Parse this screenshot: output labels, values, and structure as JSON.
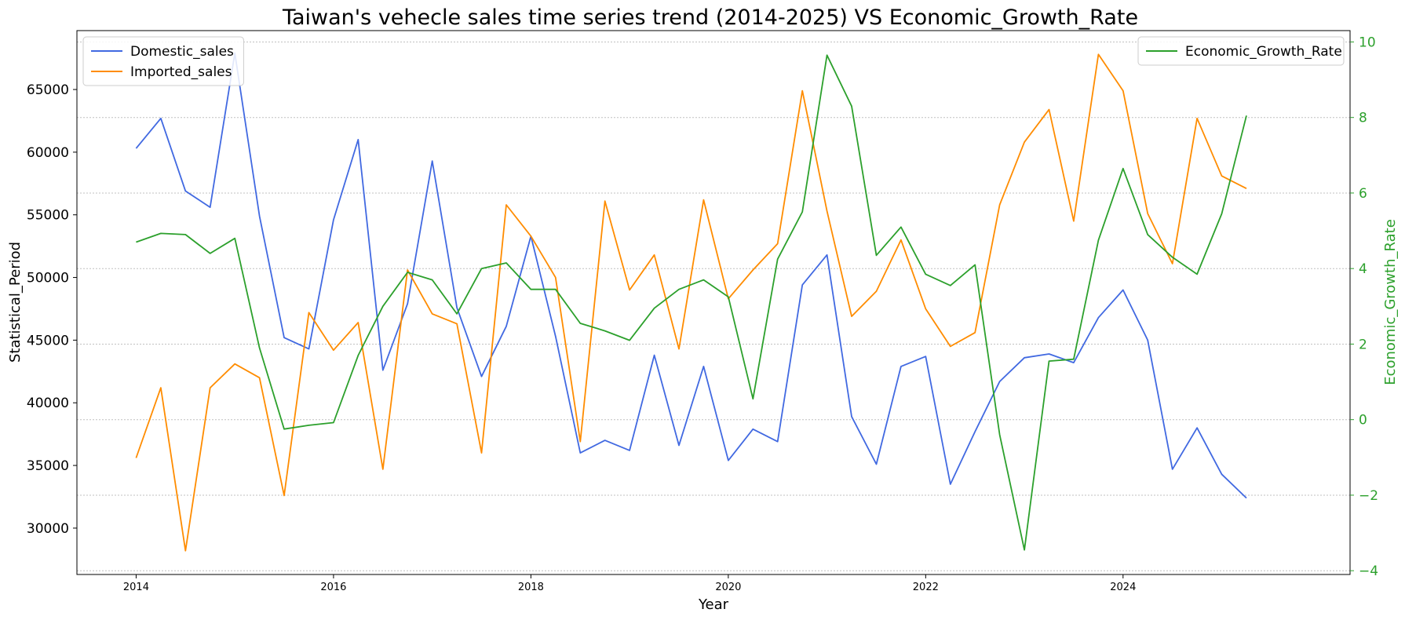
{
  "chart_data": {
    "type": "line",
    "title": "Taiwan's vehecle sales time series trend (2014-2025) VS Economic_Growth_Rate",
    "xlabel": "Year",
    "ylabel_left": "Statistical_Period",
    "ylabel_right": "Economic_Growth_Rate",
    "x_ticks": [
      2014,
      2016,
      2018,
      2020,
      2022,
      2024
    ],
    "x_ticks_labels": [
      "2014",
      "2016",
      "2018",
      "2020",
      "2022",
      "2024"
    ],
    "xlim": [
      2013.4,
      2026.3
    ],
    "ylim_left": [
      26300,
      69700
    ],
    "yticks_left": [
      30000,
      35000,
      40000,
      45000,
      50000,
      55000,
      60000,
      65000
    ],
    "yticks_left_labels": [
      "30000",
      "35000",
      "40000",
      "45000",
      "50000",
      "55000",
      "60000",
      "65000"
    ],
    "ylim_right": [
      -4.1,
      10.3
    ],
    "yticks_right": [
      -4,
      -2,
      0,
      2,
      4,
      6,
      8,
      10
    ],
    "yticks_right_labels": [
      "−4",
      "−2",
      "0",
      "2",
      "4",
      "6",
      "8",
      "10"
    ],
    "grid": "horizontal",
    "x": [
      2014.0,
      2014.25,
      2014.5,
      2014.75,
      2015.0,
      2015.25,
      2015.5,
      2015.75,
      2016.0,
      2016.25,
      2016.5,
      2016.75,
      2017.0,
      2017.25,
      2017.5,
      2017.75,
      2018.0,
      2018.25,
      2018.5,
      2018.75,
      2019.0,
      2019.25,
      2019.5,
      2019.75,
      2020.0,
      2020.25,
      2020.5,
      2020.75,
      2021.0,
      2021.25,
      2021.5,
      2021.75,
      2022.0,
      2022.25,
      2022.5,
      2022.75,
      2023.0,
      2023.25,
      2023.5,
      2023.75,
      2024.0,
      2024.25,
      2024.5,
      2024.75,
      2025.0,
      2025.25
    ],
    "series": [
      {
        "name": "Domestic_sales",
        "axis": "left",
        "color": "#4169e1",
        "values": [
          60300,
          62700,
          56900,
          55600,
          67900,
          54900,
          45200,
          44300,
          54600,
          61000,
          42600,
          47900,
          59300,
          47600,
          42100,
          46100,
          53300,
          45300,
          36000,
          37000,
          36200,
          43800,
          36600,
          42900,
          35400,
          37900,
          36900,
          49400,
          51800,
          38900,
          35100,
          42900,
          43700,
          33500,
          37700,
          41700,
          43600,
          43900,
          43200,
          46800,
          49000,
          45000,
          34700,
          38000,
          34300,
          32400
        ]
      },
      {
        "name": "Imported_sales",
        "axis": "left",
        "color": "#ff8c00",
        "values": [
          35600,
          41200,
          28200,
          41200,
          43100,
          42000,
          32600,
          47200,
          44200,
          46400,
          34700,
          50600,
          47100,
          46300,
          36000,
          55800,
          53300,
          50000,
          36900,
          56100,
          49000,
          51800,
          44300,
          56200,
          48300,
          50600,
          52700,
          64900,
          55300,
          46900,
          48900,
          53000,
          47500,
          44500,
          45600,
          55800,
          60800,
          63400,
          54500,
          67800,
          64900,
          55100,
          51100,
          62700,
          58100,
          57100
        ]
      },
      {
        "name": "Economic_Growth_Rate",
        "axis": "right",
        "color": "#2ca02c",
        "values": [
          4.7,
          4.93,
          4.9,
          4.4,
          4.8,
          1.9,
          -0.25,
          -0.15,
          -0.08,
          1.7,
          3.0,
          3.9,
          3.7,
          2.8,
          4.0,
          4.15,
          3.45,
          3.45,
          2.55,
          2.35,
          2.1,
          2.95,
          3.45,
          3.7,
          3.25,
          0.55,
          4.25,
          5.5,
          9.65,
          8.3,
          4.35,
          5.1,
          3.85,
          3.55,
          4.1,
          -0.4,
          -3.45,
          1.55,
          1.6,
          4.75,
          6.65,
          4.9,
          4.3,
          3.85,
          5.45,
          8.05
        ]
      }
    ],
    "legend_left": {
      "placement": "upper-left"
    },
    "legend_right": {
      "placement": "upper-right"
    }
  },
  "colors": {
    "left_axis": "#000000",
    "right_axis": "#2ca02c",
    "grid": "#c0c0c0"
  }
}
